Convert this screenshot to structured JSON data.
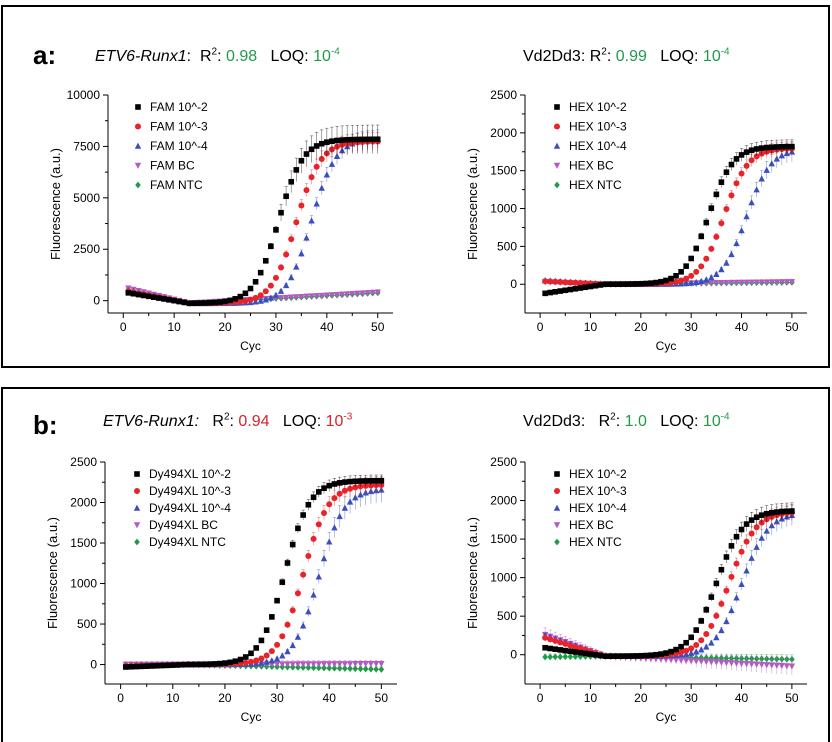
{
  "panels": [
    {
      "label": "a:",
      "left": {
        "gene": "ETV6-Runx1",
        "r2_label": "R",
        "r2_sup": "2",
        "r2_sep": ":",
        "r2_value": "0.98",
        "loq_label": "LOQ:",
        "loq_base": "10",
        "loq_exp": "-4",
        "value_color": "#1f9b48"
      },
      "right": {
        "gene": "Vd2Dd3:",
        "r2_label": "R",
        "r2_sup": "2",
        "r2_sep": ":",
        "r2_value": "0.99",
        "loq_label": "LOQ:",
        "loq_base": "10",
        "loq_exp": "-4",
        "value_color": "#1f9b48"
      }
    },
    {
      "label": "b:",
      "left": {
        "gene": "ETV6-Runx1:",
        "r2_label": "R",
        "r2_sup": "2",
        "r2_sep": ":",
        "r2_value": "0.94",
        "loq_label": "LOQ:",
        "loq_base": "10",
        "loq_exp": "-3",
        "value_color": "#d8232a"
      },
      "right": {
        "gene": "Vd2Dd3:",
        "r2_label": "R",
        "r2_sup": "2",
        "r2_sep": ":",
        "r2_value": "1.0",
        "loq_label": "LOQ:",
        "loq_base": "10",
        "loq_exp": "-4",
        "value_color": "#1f9b48"
      }
    }
  ],
  "series_colors": [
    "#000000",
    "#e8232a",
    "#3a4fbf",
    "#b25bc2",
    "#1f9b48"
  ],
  "series_markers": [
    "square",
    "circle",
    "triangle-up",
    "triangle-down",
    "diamond"
  ],
  "chart_data": [
    {
      "type": "line",
      "xlabel": "Cyc",
      "ylabel": "Fluorescence (a.u.)",
      "xlim": [
        -3,
        53
      ],
      "ylim": [
        -600,
        10000
      ],
      "xticks": [
        0,
        10,
        20,
        30,
        40,
        50
      ],
      "yticks": [
        0,
        2500,
        5000,
        7500,
        10000
      ],
      "grid": false,
      "legend_position": "top-left",
      "series": [
        {
          "name": "FAM 10^-2",
          "start": 380,
          "dip": -130,
          "plateau": 7850,
          "mid": 30.5,
          "k": 0.42,
          "err": 0.1
        },
        {
          "name": "FAM 10^-3",
          "start": 450,
          "dip": -130,
          "plateau": 7750,
          "mid": 34.0,
          "k": 0.42,
          "err": 0.06
        },
        {
          "name": "FAM 10^-4",
          "start": 500,
          "dip": -130,
          "plateau": 7900,
          "mid": 37.0,
          "k": 0.42,
          "err": 0.06
        },
        {
          "name": "FAM BC",
          "start": 600,
          "dip": -120,
          "end": 400,
          "err": 0.25
        },
        {
          "name": "FAM NTC",
          "start": 550,
          "dip": -130,
          "end": 380,
          "err": 0.25
        }
      ]
    },
    {
      "type": "line",
      "xlabel": "Cyc",
      "ylabel": "Fluorescence (a.u.)",
      "xlim": [
        -3,
        53
      ],
      "ylim": [
        -380,
        2500
      ],
      "xticks": [
        0,
        10,
        20,
        30,
        40,
        50
      ],
      "yticks": [
        0,
        500,
        1000,
        1500,
        2000,
        2500
      ],
      "grid": false,
      "legend_position": "top-left",
      "series": [
        {
          "name": "HEX 10^-2",
          "start": -120,
          "dip": 0,
          "plateau": 1820,
          "mid": 33.5,
          "k": 0.42,
          "err": 0.05
        },
        {
          "name": "HEX 10^-3",
          "start": 40,
          "dip": 0,
          "plateau": 1800,
          "mid": 36.5,
          "k": 0.42,
          "err": 0.05
        },
        {
          "name": "HEX 10^-4",
          "start": 50,
          "dip": 0,
          "plateau": 1790,
          "mid": 41.0,
          "k": 0.42,
          "err": 0.08
        },
        {
          "name": "HEX BC",
          "start": 30,
          "dip": 0,
          "end": 30,
          "err": 0.4
        },
        {
          "name": "HEX NTC",
          "start": 40,
          "dip": 0,
          "end": 25,
          "err": 0.4
        }
      ]
    },
    {
      "type": "line",
      "xlabel": "Cyc",
      "ylabel": "Fluorescence (a.u.)",
      "xlim": [
        -3,
        53
      ],
      "ylim": [
        -240,
        2500
      ],
      "xticks": [
        0,
        10,
        20,
        30,
        40,
        50
      ],
      "yticks": [
        0,
        500,
        1000,
        1500,
        2000,
        2500
      ],
      "grid": false,
      "legend_position": "top-left",
      "series": [
        {
          "name": "Dy494XL 10^-2",
          "start": -30,
          "dip": 0,
          "plateau": 2270,
          "mid": 31.5,
          "k": 0.42,
          "err": 0.03
        },
        {
          "name": "Dy494XL 10^-3",
          "start": -20,
          "dip": 0,
          "plateau": 2220,
          "mid": 35.0,
          "k": 0.42,
          "err": 0.05
        },
        {
          "name": "Dy494XL 10^-4",
          "start": -10,
          "dip": 0,
          "plateau": 2170,
          "mid": 38.0,
          "k": 0.42,
          "err": 0.08
        },
        {
          "name": "Dy494XL BC",
          "start": 0,
          "dip": 0,
          "end": 10,
          "err": 0.6
        },
        {
          "name": "Dy494XL NTC",
          "start": -10,
          "dip": 0,
          "end": -60,
          "err": 0.3
        }
      ]
    },
    {
      "type": "line",
      "xlabel": "Cyc",
      "ylabel": "Fluorescence (a.u.)",
      "xlim": [
        -3,
        53
      ],
      "ylim": [
        -380,
        2500
      ],
      "xticks": [
        0,
        10,
        20,
        30,
        40,
        50
      ],
      "yticks": [
        0,
        500,
        1000,
        1500,
        2000,
        2500
      ],
      "grid": false,
      "legend_position": "top-left",
      "series": [
        {
          "name": "HEX 10^-2",
          "start": 90,
          "dip": -20,
          "plateau": 1870,
          "mid": 35.0,
          "k": 0.38,
          "err": 0.06
        },
        {
          "name": "HEX 10^-3",
          "start": 220,
          "dip": -20,
          "plateau": 1860,
          "mid": 37.5,
          "k": 0.38,
          "err": 0.06
        },
        {
          "name": "HEX 10^-4",
          "start": 250,
          "dip": -20,
          "plateau": 1850,
          "mid": 40.0,
          "k": 0.38,
          "err": 0.08
        },
        {
          "name": "HEX BC",
          "start": 260,
          "dip": -20,
          "end": -150,
          "err": 0.6
        },
        {
          "name": "HEX NTC",
          "start": -30,
          "dip": -20,
          "end": -60,
          "err": 0.5
        }
      ]
    }
  ]
}
